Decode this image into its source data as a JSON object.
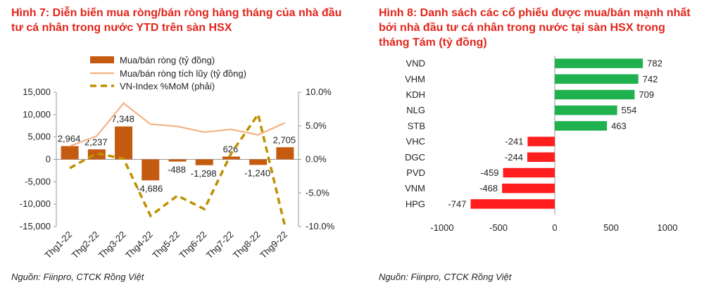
{
  "figure7": {
    "title": "Hình 7: Diễn biến mua ròng/bán ròng hàng tháng của nhà đầu tư cá nhân trong nước YTD trên sàn HSX",
    "source": "Nguồn: Fiinpro, CTCK Rồng Việt"
  },
  "figure8": {
    "title": "Hình 8: Danh sách các cổ phiếu được mua/bán mạnh nhất bởi nhà đầu tư cá nhân trong nước tại sàn HSX trong tháng Tám (tỷ đồng)",
    "source": "Nguồn: Fiinpro, CTCK Rồng Việt"
  },
  "chart_data": [
    {
      "type": "bar",
      "categories": [
        "Thg1-22",
        "Thg2-22",
        "Thg3-22",
        "Thg4-22",
        "Thg5-22",
        "Thg6-22",
        "Thg7-22",
        "Thg8-22",
        "Thg9-22"
      ],
      "series": [
        {
          "name": "Mua/bán ròng (tỷ đồng)",
          "type": "bar",
          "axis": "left",
          "color": "#c55a11",
          "values": [
            2964,
            2237,
            7348,
            -4686,
            -488,
            -1298,
            626,
            -1240,
            2705
          ],
          "labels": [
            "2,964",
            "2,237",
            "7,348",
            "-4,686",
            "-488",
            "-1,298",
            "626",
            "-1,240",
            "2,705"
          ]
        },
        {
          "name": "Mua/bán ròng tích lũy (tỷ đồng)",
          "type": "line",
          "axis": "left",
          "color": "#f4b183",
          "values": [
            2964,
            5201,
            12549,
            7863,
            7375,
            6077,
            6703,
            5463,
            8168
          ]
        },
        {
          "name": "VN-Index %MoM (phải)",
          "type": "line",
          "axis": "right",
          "dash": "dashed",
          "color": "#bf9000",
          "values": [
            -1.3,
            0.9,
            0.1,
            -8.4,
            -5.4,
            -7.4,
            0.9,
            6.7,
            -10.0
          ]
        }
      ],
      "ylim": [
        -15000,
        15000
      ],
      "yticks": [
        "15,000",
        "10,000",
        "5,000",
        "0",
        "-5,000",
        "-10,000",
        "-15,000"
      ],
      "y2lim": [
        -10,
        10
      ],
      "y2ticks": [
        "10.0%",
        "5.0%",
        "0.0%",
        "-5.0%",
        "-10.0%"
      ],
      "legend": "top",
      "grid": false
    },
    {
      "type": "bar",
      "orientation": "horizontal",
      "categories": [
        "VND",
        "VHM",
        "KDH",
        "NLG",
        "STB",
        "VHC",
        "DGC",
        "PVD",
        "VNM",
        "HPG"
      ],
      "values": [
        782,
        742,
        709,
        554,
        463,
        -241,
        -244,
        -459,
        -468,
        -747
      ],
      "positive_color": "#1fb14e",
      "negative_color": "#ff1e1e",
      "xlim": [
        -1000,
        1000
      ],
      "xticks": [
        "-1000",
        "-500",
        "0",
        "500",
        "1000"
      ],
      "legend": "none",
      "grid": false
    }
  ]
}
